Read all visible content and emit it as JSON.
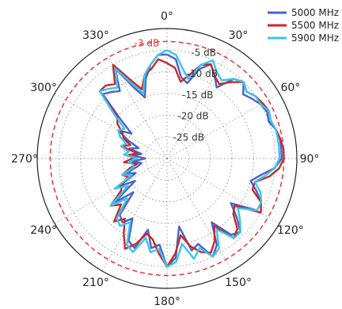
{
  "chart_data": {
    "type": "polar-line",
    "title": "",
    "angle_unit": "degrees",
    "angle_zero": "top",
    "angle_direction": "clockwise",
    "angle_tick_labels": [
      "0°",
      "30°",
      "60°",
      "90°",
      "120°",
      "150°",
      "180°",
      "210°",
      "240°",
      "270°",
      "300°",
      "330°"
    ],
    "radial_unit": "dB",
    "radial_range": [
      -30,
      0
    ],
    "radial_rings": [
      -25,
      -20,
      -15,
      -10,
      -5
    ],
    "radial_tick_labels": [
      "-25 dB",
      "-20 dB",
      "-15 dB",
      "-10 dB",
      "-5 dB"
    ],
    "reference_circle": {
      "value": -3,
      "label": "-3 dB",
      "color": "#e0383a"
    },
    "grid": true,
    "legend_position": "top-right",
    "series": [
      {
        "name": "5000 MHz",
        "color": "#4a63c8",
        "theta": [
          0,
          5,
          10,
          15,
          20,
          25,
          30,
          35,
          40,
          45,
          50,
          55,
          60,
          65,
          70,
          75,
          80,
          85,
          90,
          95,
          100,
          105,
          110,
          115,
          120,
          125,
          130,
          135,
          140,
          145,
          150,
          155,
          160,
          165,
          170,
          175,
          180,
          185,
          190,
          195,
          200,
          205,
          210,
          215,
          220,
          225,
          230,
          235,
          240,
          245,
          250,
          255,
          260,
          265,
          270,
          275,
          280,
          285,
          290,
          295,
          300,
          305,
          310,
          315,
          320,
          325,
          330,
          335,
          340,
          345,
          350,
          355
        ],
        "r": [
          -6,
          -7,
          -11,
          -12,
          -8,
          -6,
          -8,
          -10,
          -6,
          -5,
          -7,
          -6,
          -5,
          -4.5,
          -5,
          -4,
          -3.5,
          -3.5,
          -3.5,
          -5,
          -8,
          -10,
          -8,
          -6,
          -6,
          -12,
          -9,
          -6,
          -7,
          -12,
          -7,
          -5,
          -9,
          -8,
          -14,
          -7,
          -5,
          -10,
          -9,
          -13,
          -8,
          -9,
          -14,
          -12,
          -13,
          -19,
          -14,
          -21,
          -17,
          -22,
          -20,
          -23,
          -24,
          -22,
          -25,
          -22,
          -24,
          -21,
          -23,
          -20,
          -17,
          -20,
          -16,
          -9,
          -10,
          -11,
          -6,
          -12,
          -15,
          -11,
          -8,
          -6
        ]
      },
      {
        "name": "5500 MHz",
        "color": "#c8282d",
        "theta": [
          0,
          5,
          10,
          15,
          20,
          25,
          30,
          35,
          40,
          45,
          50,
          55,
          60,
          65,
          70,
          75,
          80,
          85,
          90,
          95,
          100,
          105,
          110,
          115,
          120,
          125,
          130,
          135,
          140,
          145,
          150,
          155,
          160,
          165,
          170,
          175,
          180,
          185,
          190,
          195,
          200,
          205,
          210,
          215,
          220,
          225,
          230,
          235,
          240,
          245,
          250,
          255,
          260,
          265,
          270,
          275,
          280,
          285,
          290,
          295,
          300,
          305,
          310,
          315,
          320,
          325,
          330,
          335,
          340,
          345,
          350,
          355
        ],
        "r": [
          -8,
          -9,
          -12,
          -10,
          -7,
          -6,
          -8,
          -9,
          -7,
          -5,
          -6,
          -5,
          -4.5,
          -4,
          -4.5,
          -4,
          -3.5,
          -3,
          -3,
          -4,
          -6,
          -9,
          -9,
          -6,
          -5,
          -11,
          -10,
          -7,
          -6,
          -11,
          -8,
          -6,
          -7,
          -9,
          -12,
          -8,
          -5,
          -8,
          -11,
          -12,
          -9,
          -7,
          -10,
          -13,
          -11,
          -15,
          -13,
          -17,
          -18,
          -20,
          -19,
          -21,
          -23,
          -20,
          -22,
          -21,
          -23,
          -19,
          -21,
          -19,
          -18,
          -16,
          -15,
          -8,
          -8,
          -9,
          -5,
          -10,
          -13,
          -10,
          -9,
          -7
        ]
      },
      {
        "name": "5900 MHz",
        "color": "#3cc4ee",
        "theta": [
          0,
          5,
          10,
          15,
          20,
          25,
          30,
          35,
          40,
          45,
          50,
          55,
          60,
          65,
          70,
          75,
          80,
          85,
          90,
          95,
          100,
          105,
          110,
          115,
          120,
          125,
          130,
          135,
          140,
          145,
          150,
          155,
          160,
          165,
          170,
          175,
          180,
          185,
          190,
          195,
          200,
          205,
          210,
          215,
          220,
          225,
          230,
          235,
          240,
          245,
          250,
          255,
          260,
          265,
          270,
          275,
          280,
          285,
          290,
          295,
          300,
          305,
          310,
          315,
          320,
          325,
          330,
          335,
          340,
          345,
          350,
          355
        ],
        "r": [
          -5,
          -6,
          -9,
          -11,
          -7,
          -5,
          -7,
          -8,
          -6,
          -5,
          -6,
          -5,
          -5,
          -4,
          -4.5,
          -4,
          -4,
          -4,
          -4,
          -5,
          -7,
          -9,
          -7,
          -6,
          -6,
          -10,
          -8,
          -6,
          -6,
          -10,
          -6,
          -5,
          -8,
          -6,
          -10,
          -6,
          -5,
          -9,
          -8,
          -11,
          -7,
          -8,
          -13,
          -11,
          -12,
          -17,
          -13,
          -19,
          -16,
          -21,
          -19,
          -22,
          -22,
          -21,
          -23,
          -20,
          -21,
          -19,
          -20,
          -18,
          -17,
          -18,
          -14,
          -8,
          -9,
          -10,
          -6,
          -11,
          -14,
          -10,
          -8,
          -6
        ]
      }
    ]
  }
}
